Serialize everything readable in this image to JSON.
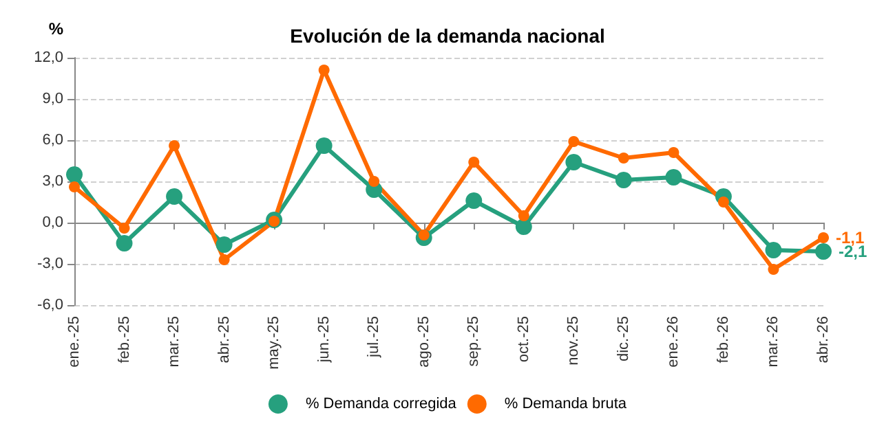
{
  "chart_data": {
    "type": "line",
    "title": "Evolución de la demanda nacional",
    "ylabel": "%",
    "categories": [
      "ene.-25",
      "feb.-25",
      "mar.-25",
      "abr.-25",
      "may.-25",
      "jun.-25",
      "jul.-25",
      "ago.-25",
      "sep.-25",
      "oct.-25",
      "nov.-25",
      "dic.-25",
      "ene.-26",
      "feb.-26",
      "mar.-26",
      "abr.-26"
    ],
    "series": [
      {
        "name": "% Demanda corregida",
        "color": "#26a07e",
        "values": [
          3.5,
          -1.5,
          1.9,
          -1.6,
          0.2,
          5.6,
          2.4,
          -1.1,
          1.6,
          -0.3,
          4.4,
          3.1,
          3.3,
          1.9,
          -2.0,
          -2.1
        ],
        "value_labels": [
          null,
          null,
          null,
          null,
          null,
          null,
          null,
          null,
          null,
          null,
          null,
          null,
          null,
          null,
          null,
          "-2,1"
        ]
      },
      {
        "name": "% Demanda bruta",
        "color": "#ff6a00",
        "values": [
          2.6,
          -0.4,
          5.6,
          -2.7,
          0.1,
          11.1,
          3.0,
          -0.9,
          4.4,
          0.5,
          5.9,
          4.7,
          5.1,
          1.5,
          -3.4,
          -1.1
        ],
        "value_labels": [
          null,
          null,
          null,
          null,
          null,
          null,
          null,
          null,
          null,
          null,
          null,
          null,
          null,
          null,
          null,
          "-1,1"
        ]
      }
    ],
    "ylim": [
      -6,
      12
    ],
    "yticks": [
      {
        "value": -6,
        "label": "-6,0"
      },
      {
        "value": -3,
        "label": "-3,0"
      },
      {
        "value": 0,
        "label": "0,0"
      },
      {
        "value": 3,
        "label": "3,0"
      },
      {
        "value": 6,
        "label": "6,0"
      },
      {
        "value": 9,
        "label": "9,0"
      },
      {
        "value": 12,
        "label": "12,0"
      }
    ],
    "grid": "y",
    "legend": "bottom",
    "marker": "circle",
    "line_style": "solid"
  }
}
